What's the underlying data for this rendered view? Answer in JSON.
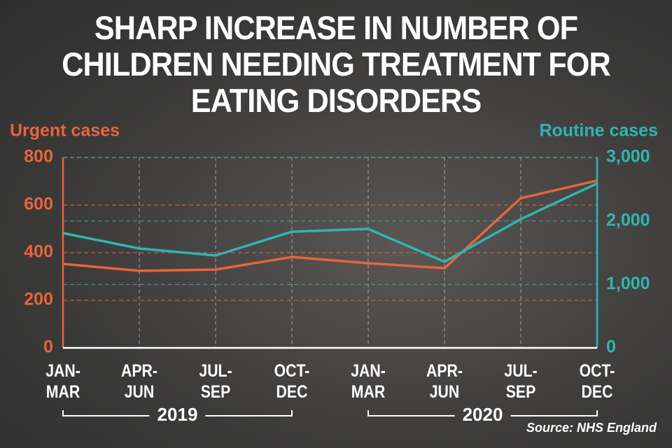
{
  "chart_data": {
    "type": "line",
    "title": "SHARP INCREASE IN NUMBER OF CHILDREN NEEDING TREATMENT FOR EATING DISORDERS",
    "y_label": "Urgent cases",
    "y2_label": "Routine cases",
    "categories": [
      "JAN-\nMAR",
      "APR-\nJUN",
      "JUL-\nSEP",
      "OCT-\nDEC",
      "JAN-\nMAR",
      "APR-\nJUN",
      "JUL-\nSEP",
      "OCT-\nDEC"
    ],
    "groups": [
      "2019",
      "2020"
    ],
    "series": [
      {
        "name": "Urgent cases",
        "color": "#e8643c",
        "values": [
          353,
          324,
          329,
          382,
          356,
          335,
          629,
          703
        ]
      },
      {
        "name": "Routine cases",
        "color": "#2fb5b0",
        "axis": "y2",
        "values": [
          1809,
          1566,
          1456,
          1831,
          1875,
          1357,
          2029,
          2592
        ]
      }
    ],
    "ylim": [
      0,
      800
    ],
    "yticks": [
      0,
      200,
      400,
      600,
      800
    ],
    "y2lim": [
      0,
      3000
    ],
    "y2ticks": [
      0,
      {
        "value": 1000,
        "label": "1,000"
      },
      {
        "value": 2000,
        "label": "2,000"
      },
      {
        "value": 3000,
        "label": "3,000"
      }
    ],
    "grid": true,
    "source": "Source: NHS England"
  }
}
